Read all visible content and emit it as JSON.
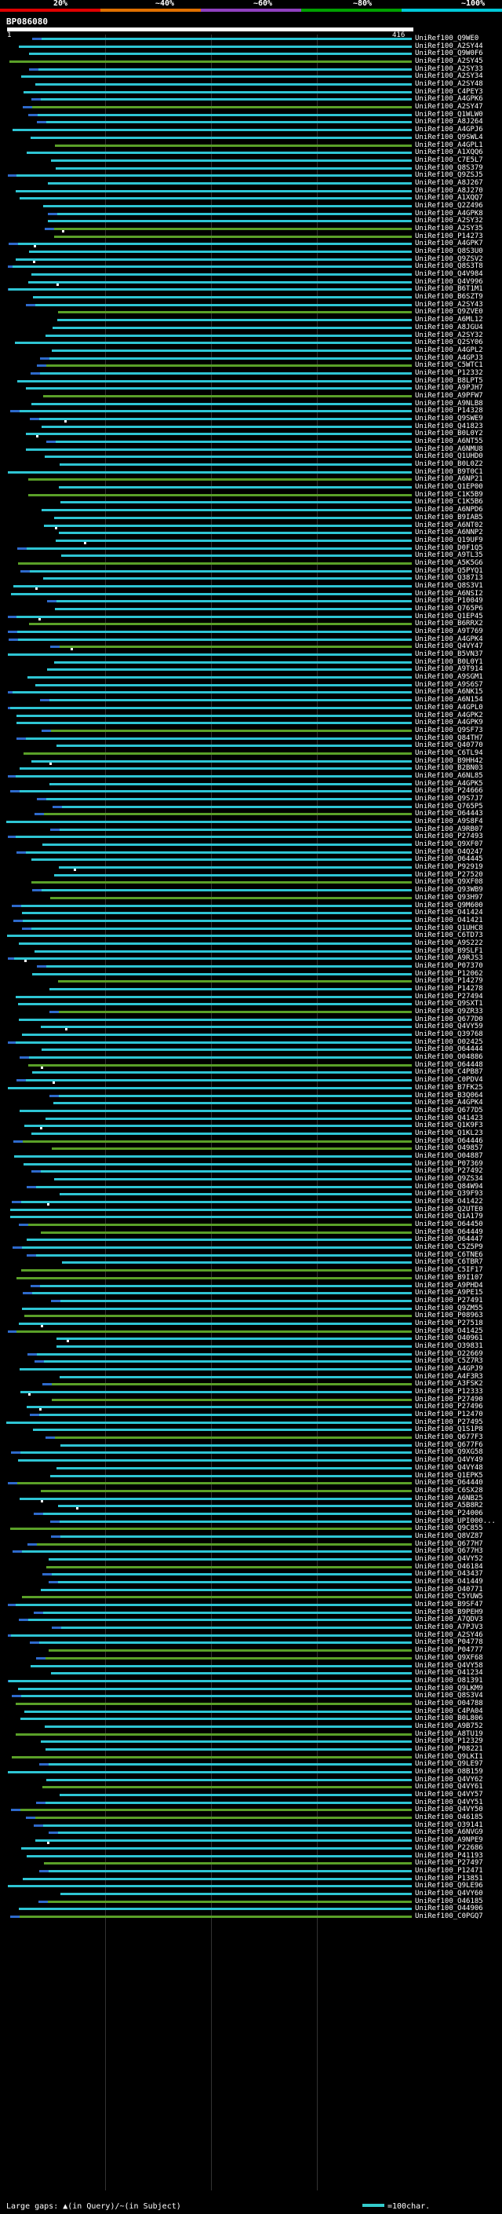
{
  "scale": {
    "labels": [
      "20%",
      "~40%",
      "~60%",
      "~80%",
      "~100%"
    ],
    "colors": [
      "#e00000",
      "#e07000",
      "#9040c0",
      "#00a000",
      "#00c8d8"
    ]
  },
  "query": {
    "id": "BP086080",
    "start": "1",
    "end": "416"
  },
  "colors": {
    "high": "#2ec5d4",
    "mid": "#5aa028",
    "low": "#2e6acc"
  },
  "legend": {
    "text": "Large gaps: ▲(in Query)/~(in Subject)",
    "bar_label": "=100char."
  },
  "hits": [
    "UniRef100_Q9WE0",
    "UniRef100_A2SY44",
    "UniRef100_Q9W0F6",
    "UniRef100_A2SY45",
    "UniRef100_A2SY33",
    "UniRef100_A2SY34",
    "UniRef100_A2SY48",
    "UniRef100_C4PEY3",
    "UniRef100_A4GPK6",
    "UniRef100_A2SY47",
    "UniRef100_Q1WLW0",
    "UniRef100_A8J264",
    "UniRef100_A4GPJ6",
    "UniRef100_Q9SWL4",
    "UniRef100_A4GPL1",
    "UniRef100_A1XQQ6",
    "UniRef100_C7E5L7",
    "UniRef100_Q8S379",
    "UniRef100_Q9ZSJ5",
    "UniRef100_A8J267",
    "UniRef100_A8J270",
    "UniRef100_A1XQQ7",
    "UniRef100_Q2Z496",
    "UniRef100_A4GPK8",
    "UniRef100_A2SY32",
    "UniRef100_A2SY35",
    "UniRef100_P14273",
    "UniRef100_A4GPK7",
    "UniRef100_Q8S3U0",
    "UniRef100_Q9ZSV2",
    "UniRef100_Q8S3T8",
    "UniRef100_Q4V984",
    "UniRef100_Q4V996",
    "UniRef100_B6T1M1",
    "UniRef100_B6SZT9",
    "UniRef100_A2SY43",
    "UniRef100_Q9ZVE0",
    "UniRef100_A6ML12",
    "UniRef100_A8JGU4",
    "UniRef100_A2SY32",
    "UniRef100_Q2SY06",
    "UniRef100_A4GPL2",
    "UniRef100_A4GPJ3",
    "UniRef100_C5WTC1",
    "UniRef100_P12332",
    "UniRef100_B8LPT5",
    "UniRef100_A9PJH7",
    "UniRef100_A9PFW7",
    "UniRef100_A9NLB8",
    "UniRef100_P14328",
    "UniRef100_Q9SWE9",
    "UniRef100_Q41823",
    "UniRef100_B0L0Y2",
    "UniRef100_A6NT55",
    "UniRef100_A6NMU8",
    "UniRef100_Q1UHD0",
    "UniRef100_B0L0Z2",
    "UniRef100_B9T0C1",
    "UniRef100_A6NP21",
    "UniRef100_Q1EP00",
    "UniRef100_C1K5B9",
    "UniRef100_C1K5B6",
    "UniRef100_A6NPD6",
    "UniRef100_B9IAB5",
    "UniRef100_A6NT02",
    "UniRef100_A6NNP2",
    "UniRef100_Q19UF9",
    "UniRef100_D0F1Q5",
    "UniRef100_A9TL35",
    "UniRef100_A5K5G6",
    "UniRef100_Q5PYQ1",
    "UniRef100_Q38713",
    "UniRef100_Q8S3V1",
    "UniRef100_A6NSI2",
    "UniRef100_P10049",
    "UniRef100_Q765P6",
    "UniRef100_Q1EP45",
    "UniRef100_B6RRX2",
    "UniRef100_A9T769",
    "UniRef100_A4GPK4",
    "UniRef100_Q4VY47",
    "UniRef100_B5VN37",
    "UniRef100_B0L0Y1",
    "UniRef100_A9T914",
    "UniRef100_A9SGM1",
    "UniRef100_A9S6S7",
    "UniRef100_A6NK15",
    "UniRef100_A6N154",
    "UniRef100_A4GPL0",
    "UniRef100_A4GPK2",
    "UniRef100_A4GPK9",
    "UniRef100_Q9SF73",
    "UniRef100_Q84TH7",
    "UniRef100_Q40770",
    "UniRef100_C6TL94",
    "UniRef100_B9HH42",
    "UniRef100_B2BN03",
    "UniRef100_A6NL85",
    "UniRef100_A4GPK5",
    "UniRef100_P24666",
    "UniRef100_Q9S7J7",
    "UniRef100_Q765P5",
    "UniRef100_O64443",
    "UniRef100_A9S8F4",
    "UniRef100_A9RB07",
    "UniRef100_P27493",
    "UniRef100_Q9XF07",
    "UniRef100_O4Q247",
    "UniRef100_O64445",
    "UniRef100_P92919",
    "UniRef100_P27520",
    "UniRef100_Q9XF08",
    "UniRef100_Q93WB9",
    "UniRef100_Q93H97",
    "UniRef100_Q9M600",
    "UniRef100_O41424",
    "UniRef100_O41421",
    "UniRef100_Q1UHC8",
    "UniRef100_C6TD73",
    "UniRef100_A9S222",
    "UniRef100_B9SLF1",
    "UniRef100_A9RJS3",
    "UniRef100_P07370",
    "UniRef100_P12062",
    "UniRef100_P14279",
    "UniRef100_P14278",
    "UniRef100_P27494",
    "UniRef100_Q9SXT1",
    "UniRef100_Q9ZR33",
    "UniRef100_Q677D0",
    "UniRef100_Q4VY59",
    "UniRef100_Q39768",
    "UniRef100_O02425",
    "UniRef100_O64444",
    "UniRef100_O04886",
    "UniRef100_O64448",
    "UniRef100_C4PB87",
    "UniRef100_C0PDV4",
    "UniRef100_B7FK25",
    "UniRef100_B3Q064",
    "UniRef100_A4GPK4",
    "UniRef100_Q677D5",
    "UniRef100_Q41423",
    "UniRef100_Q1K9F3",
    "UniRef100_Q1KL23",
    "UniRef100_O64446",
    "UniRef100_O49857",
    "UniRef100_O04887",
    "UniRef100_P07369",
    "UniRef100_P27492",
    "UniRef100_Q9ZS34",
    "UniRef100_Q84W94",
    "UniRef100_Q39F93",
    "UniRef100_O41422",
    "UniRef100_Q2UTE0",
    "UniRef100_Q1A179",
    "UniRef100_O64450",
    "UniRef100_O64449",
    "UniRef100_O64447",
    "UniRef100_C5Z5P9",
    "UniRef100_C6TNE6",
    "UniRef100_C6TBR7",
    "UniRef100_C5IF17",
    "UniRef100_B9I107",
    "UniRef100_A9PHD4",
    "UniRef100_A9PE15",
    "UniRef100_P27491",
    "UniRef100_Q9ZM55",
    "UniRef100_P08963",
    "UniRef100_P27518",
    "UniRef100_O41425",
    "UniRef100_O40961",
    "UniRef100_O39831",
    "UniRef100_O22669",
    "UniRef100_C5Z7R3",
    "UniRef100_A4GPJ9",
    "UniRef100_A4F3R3",
    "UniRef100_A3FSK2",
    "UniRef100_P12333",
    "UniRef100_P27490",
    "UniRef100_P27496",
    "UniRef100_P12470",
    "UniRef100_P27495",
    "UniRef100_Q1S1P8",
    "UniRef100_Q677F3",
    "UniRef100_Q677F6",
    "UniRef100_Q9XG58",
    "UniRef100_Q4VY49",
    "UniRef100_Q4VY48",
    "UniRef100_Q1EPK5",
    "UniRef100_O64440",
    "UniRef100_C6SX28",
    "UniRef100_A6NB25",
    "UniRef100_A5B8R2",
    "UniRef100_P24006",
    "UniRef100_UPI000...",
    "UniRef100_Q9C855",
    "UniRef100_Q8VZ87",
    "UniRef100_Q677H7",
    "UniRef100_Q677H3",
    "UniRef100_Q4VY52",
    "UniRef100_O46184",
    "UniRef100_O43437",
    "UniRef100_O41449",
    "UniRef100_O40771",
    "UniRef100_C5YUW5",
    "UniRef100_B9SF47",
    "UniRef100_B9PEH9",
    "UniRef100_A7QDV3",
    "UniRef100_A7PJV3",
    "UniRef100_A2SY46",
    "UniRef100_P04778",
    "UniRef100_P04777",
    "UniRef100_Q9XF68",
    "UniRef100_Q4VY58",
    "UniRef100_O41234",
    "UniRef100_O81391",
    "UniRef100_Q9LKM9",
    "UniRef100_Q8S3V4",
    "UniRef100_O04788",
    "UniRef100_C4PA04",
    "UniRef100_B0L806",
    "UniRef100_A9B752",
    "UniRef100_A8TU19",
    "UniRef100_P12329",
    "UniRef100_P08221",
    "UniRef100_Q9LKI1",
    "UniRef100_Q9LE97",
    "UniRef100_O8B159",
    "UniRef100_Q4VY62",
    "UniRef100_Q4VY61",
    "UniRef100_Q4VY57",
    "UniRef100_Q4VY51",
    "UniRef100_Q4VY50",
    "UniRef100_O46185",
    "UniRef100_O39141",
    "UniRef100_A6NVG9",
    "UniRef100_A9NPE9",
    "UniRef100_P22686",
    "UniRef100_P41193",
    "UniRef100_P27497",
    "UniRef100_P12471",
    "UniRef100_P13851",
    "UniRef100_Q9LE96",
    "UniRef100_Q4VY60",
    "UniRef100_O46185",
    "UniRef100_O44906",
    "UniRef100_C0PGQ7"
  ]
}
